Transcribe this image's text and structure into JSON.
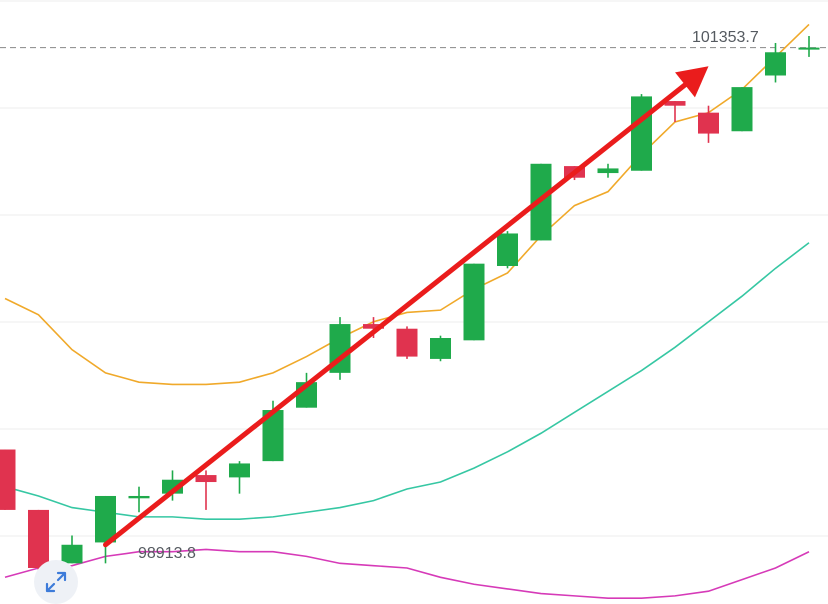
{
  "chart_data": {
    "type": "candlestick",
    "series_colors": {
      "up": "#1faa4b",
      "down": "#e0334f",
      "ma_short": "#f0a92a",
      "ma_long": "#36c7a3",
      "ma_bottom": "#d63ab8",
      "trend_arrow": "#ea1c1c",
      "grid": "#eeeeee",
      "price_line": "#888888"
    },
    "candles": [
      {
        "o": 98993,
        "c": 98941,
        "h": 98993,
        "l": 98941
      },
      {
        "o": 98941,
        "c": 98891,
        "h": 98941,
        "l": 98885
      },
      {
        "o": 98895,
        "c": 98911,
        "h": 98919,
        "l": 98895
      },
      {
        "o": 98913,
        "c": 98953,
        "h": 98953,
        "l": 98895
      },
      {
        "o": 98951,
        "c": 98953,
        "h": 98961,
        "l": 98939
      },
      {
        "o": 98955,
        "c": 98967,
        "h": 98975,
        "l": 98949
      },
      {
        "o": 98971,
        "c": 98965,
        "h": 98975,
        "l": 98941
      },
      {
        "o": 98969,
        "c": 98981,
        "h": 98983,
        "l": 98955
      },
      {
        "o": 98983,
        "c": 99027,
        "h": 99035,
        "l": 98983
      },
      {
        "o": 99029,
        "c": 99051,
        "h": 99059,
        "l": 99029
      },
      {
        "o": 99059,
        "c": 99101,
        "h": 99107,
        "l": 99053
      },
      {
        "o": 99101,
        "c": 99097,
        "h": 99107,
        "l": 99089
      },
      {
        "o": 99097,
        "c": 99073,
        "h": 99099,
        "l": 99071
      },
      {
        "o": 99071,
        "c": 99089,
        "h": 99091,
        "l": 99069
      },
      {
        "o": 99087,
        "c": 99153,
        "h": 99153,
        "l": 99087
      },
      {
        "o": 99151,
        "c": 99179,
        "h": 99181,
        "l": 99149
      },
      {
        "o": 99173,
        "c": 99239,
        "h": 99239,
        "l": 99173
      },
      {
        "o": 99237,
        "c": 99227,
        "h": 99237,
        "l": 99225
      },
      {
        "o": 99231,
        "c": 99235,
        "h": 99239,
        "l": 99227
      },
      {
        "o": 99233,
        "c": 99297,
        "h": 99299,
        "l": 99233
      },
      {
        "o": 99293,
        "c": 99289,
        "h": 99293,
        "l": 99275
      },
      {
        "o": 99283,
        "c": 99265,
        "h": 99289,
        "l": 99257
      },
      {
        "o": 99267,
        "c": 99305,
        "h": 99305,
        "l": 99267
      },
      {
        "o": 99315,
        "c": 99335,
        "h": 99343,
        "l": 99309
      },
      {
        "o": 99339,
        "c": 99339,
        "h": 99349,
        "l": 99331
      }
    ],
    "ma_short": [
      99123,
      99109,
      99079,
      99059,
      99051,
      99049,
      99049,
      99051,
      99059,
      99073,
      99089,
      99103,
      99111,
      99113,
      99131,
      99145,
      99177,
      99203,
      99215,
      99247,
      99275,
      99283,
      99303,
      99331,
      99359
    ],
    "ma_long": [
      98961,
      98953,
      98943,
      98939,
      98935,
      98935,
      98933,
      98933,
      98935,
      98939,
      98943,
      98949,
      98959,
      98965,
      98977,
      98991,
      99007,
      99025,
      99043,
      99061,
      99081,
      99103,
      99125,
      99149,
      99171
    ],
    "ma_bottom": [
      98883,
      98891,
      98893,
      98901,
      98905,
      98905,
      98907,
      98905,
      98905,
      98901,
      98895,
      98893,
      98891,
      98883,
      98877,
      98873,
      98869,
      98867,
      98865,
      98865,
      98867,
      98871,
      98881,
      98891,
      98905
    ],
    "high_marker": "101353.7",
    "low_marker": "98913.8",
    "current_price_line": 99339,
    "trend_arrow": {
      "from_index": 3,
      "from_value": 98911,
      "to_index": 21,
      "to_value": 99323
    },
    "grid": true,
    "ylim": [
      98860,
      99380
    ]
  },
  "controls": {
    "expand_icon": "expand-diagonal-icon"
  }
}
